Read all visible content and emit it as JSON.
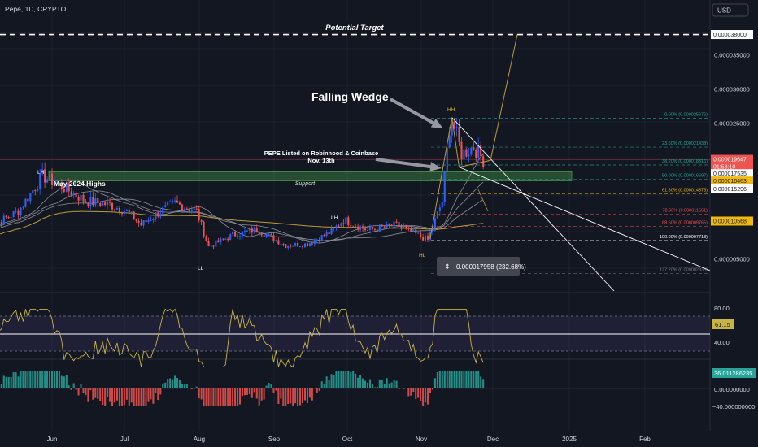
{
  "header": {
    "symbol": "Pepe, 1D, CRYPTO",
    "currency": "USD"
  },
  "colors": {
    "bg": "#131722",
    "up": "#26a69a",
    "down": "#ef5350",
    "blue": "#2962ff",
    "gold": "#b89a3c",
    "rsi": "#c8b442",
    "ma": "#8a8e99",
    "white": "#ffffff"
  },
  "annotations": {
    "potential_target": "Potential Target",
    "falling_wedge": "Falling Wedge",
    "listing_line1": "PEPE Listed on Robinhood & Coinbase",
    "listing_line2": "Nov. 13th",
    "may_highs": "May 2024 Highs",
    "support": "Support",
    "lh1": "LH",
    "ll": "LL",
    "lh2": "LH",
    "hl": "HL",
    "hh": "HH",
    "measure": "0.000017958 (232.68%)"
  },
  "price_axis": {
    "ticks": [
      "0.000035000",
      "0.000030000",
      "0.000025000",
      "0.000005000"
    ],
    "badges": [
      {
        "text": "0.000038000",
        "price": 3.8e-05,
        "bg": "#ffffff",
        "fg": "#131722"
      },
      {
        "text": "0.000019647",
        "sub": "01:58:10",
        "price": 1.9647e-05,
        "bg": "#ef5350",
        "fg": "#ffffff"
      },
      {
        "text": "0.000017535",
        "price": 1.7535e-05,
        "bg": "#ffffff",
        "fg": "#131722"
      },
      {
        "text": "0.000016463",
        "price": 1.6463e-05,
        "bg": "#f0b90b",
        "fg": "#131722"
      },
      {
        "text": "0.000015296",
        "price": 1.5296e-05,
        "bg": "#ffffff",
        "fg": "#131722"
      },
      {
        "text": "0.000010568",
        "price": 1.0568e-05,
        "bg": "#f0b90b",
        "fg": "#131722"
      }
    ]
  },
  "fib_levels": [
    {
      "label": "0.00% (0.000025676)",
      "price": 2.5676e-05,
      "color": "#26a69a"
    },
    {
      "label": "23.60% (0.000021438)",
      "price": 2.1438e-05,
      "color": "#26a69a"
    },
    {
      "label": "38.20% (0.000018816)",
      "price": 1.8816e-05,
      "color": "#26a69a"
    },
    {
      "label": "50.00% (0.000016697)",
      "price": 1.6697e-05,
      "color": "#26a69a"
    },
    {
      "label": "61.80% (0.000014578)",
      "price": 1.4578e-05,
      "color": "#f0b90b"
    },
    {
      "label": "78.60% (0.000011561)",
      "price": 1.1561e-05,
      "color": "#ef5350"
    },
    {
      "label": "88.60% (0.000009765)",
      "price": 9.765e-06,
      "color": "#ef5350"
    },
    {
      "label": "100.00% (0.000007718)",
      "price": 7.718e-06,
      "color": "#ffffff"
    },
    {
      "label": "127.20% (0.000002833)",
      "price": 2.833e-06,
      "color": "#787b86"
    }
  ],
  "rsi": {
    "ticks": [
      "80.00",
      "40.00"
    ],
    "value_label": "61.15",
    "value": 61.15
  },
  "macd": {
    "ticks": [
      "0.000000000",
      "−40.000000000"
    ],
    "value_label": "36.011286235"
  },
  "time_axis": [
    "Jun",
    "Jul",
    "Aug",
    "Sep",
    "Oct",
    "Nov",
    "Dec",
    "2025",
    "Feb"
  ],
  "chart_data": {
    "type": "candlestick",
    "title": "Pepe, 1D, CRYPTO",
    "y_unit": "USD",
    "ylim": [
      1e-06,
      3.95e-05
    ],
    "price_path": [
      {
        "date": "2024-05-05",
        "close": 9.5e-06
      },
      {
        "date": "2024-05-18",
        "close": 1.2e-05
      },
      {
        "date": "2024-05-28",
        "close": 1.72e-05
      },
      {
        "date": "2024-06-06",
        "close": 1.55e-05
      },
      {
        "date": "2024-06-15",
        "close": 1.35e-05
      },
      {
        "date": "2024-06-25",
        "close": 1.3e-05
      },
      {
        "date": "2024-07-02",
        "close": 1.2e-05
      },
      {
        "date": "2024-07-08",
        "close": 1e-05
      },
      {
        "date": "2024-07-16",
        "close": 1.2e-05
      },
      {
        "date": "2024-07-22",
        "close": 1.32e-05
      },
      {
        "date": "2024-07-31",
        "close": 1.2e-05
      },
      {
        "date": "2024-08-05",
        "close": 6.8e-06
      },
      {
        "date": "2024-08-15",
        "close": 8.5e-06
      },
      {
        "date": "2024-08-25",
        "close": 9.3e-06
      },
      {
        "date": "2024-09-06",
        "close": 7e-06
      },
      {
        "date": "2024-09-15",
        "close": 7.2e-06
      },
      {
        "date": "2024-09-25",
        "close": 9e-06
      },
      {
        "date": "2024-09-30",
        "close": 1.08e-05
      },
      {
        "date": "2024-10-10",
        "close": 9.2e-06
      },
      {
        "date": "2024-10-22",
        "close": 1e-05
      },
      {
        "date": "2024-11-04",
        "close": 7.8e-06
      },
      {
        "date": "2024-11-10",
        "close": 1.35e-05
      },
      {
        "date": "2024-11-13",
        "close": 2.45e-05
      },
      {
        "date": "2024-11-14",
        "close": 2.56e-05
      },
      {
        "date": "2024-11-18",
        "close": 2.05e-05
      },
      {
        "date": "2024-11-23",
        "close": 2.15e-05
      },
      {
        "date": "2024-11-27",
        "close": 1.96e-05
      }
    ],
    "levels": {
      "potential_target": 3.8e-05,
      "support_zone": [
        1.65e-05,
        1.78e-05
      ]
    },
    "indicators": [
      "RSI",
      "MACD histogram",
      "moving averages"
    ]
  }
}
